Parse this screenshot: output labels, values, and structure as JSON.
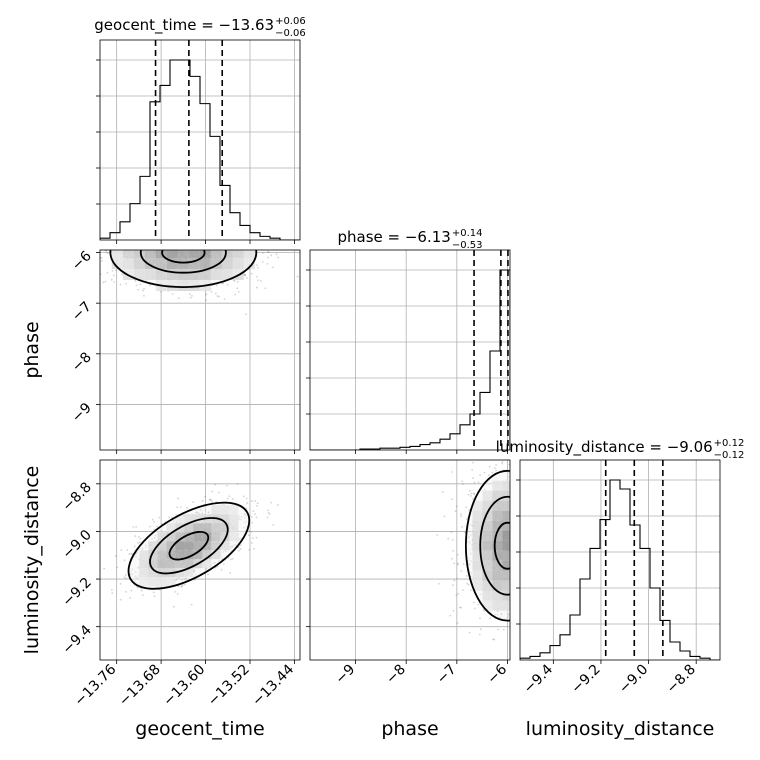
{
  "chart_data": {
    "type": "corner",
    "grid": true,
    "parameters": [
      {
        "name": "geocent_time",
        "median": -13.63,
        "err_plus": 0.06,
        "err_minus": 0.06,
        "range": [
          -13.79,
          -13.43
        ],
        "ticks": [
          -13.76,
          -13.68,
          -13.6,
          -13.52,
          -13.44
        ],
        "tick_labels": [
          "−13.76",
          "−13.68",
          "−13.60",
          "−13.52",
          "−13.44"
        ],
        "quantiles": [
          -13.69,
          -13.63,
          -13.57
        ]
      },
      {
        "name": "phase",
        "median": -6.13,
        "err_plus": 0.14,
        "err_minus": 0.53,
        "range": [
          -9.9,
          -5.95
        ],
        "ticks": [
          -9,
          -8,
          -7,
          -6
        ],
        "tick_labels": [
          "−9",
          "−8",
          "−7",
          "−6"
        ],
        "quantiles": [
          -6.66,
          -6.13,
          -5.99
        ]
      },
      {
        "name": "luminosity_distance",
        "median": -9.06,
        "err_plus": 0.12,
        "err_minus": 0.12,
        "range": [
          -9.54,
          -8.7
        ],
        "ticks": [
          -9.4,
          -9.2,
          -9.0,
          -8.8
        ],
        "tick_labels": [
          "−9.4",
          "−9.2",
          "−9.0",
          "−8.8"
        ],
        "quantiles": [
          -9.18,
          -9.06,
          -8.94
        ]
      }
    ],
    "titles": [
      {
        "prefix": "geocent_time = −13.63",
        "sup": "+0.06",
        "sub": "−0.06"
      },
      {
        "prefix": "phase = −6.13",
        "sup": "+0.14",
        "sub": "−0.53"
      },
      {
        "prefix": "luminosity_distance = −9.06",
        "sup": "+0.12",
        "sub": "−0.12"
      }
    ],
    "histograms": [
      {
        "param": "geocent_time",
        "bin_edges_range": [
          -13.79,
          -13.43
        ],
        "bins": 20,
        "counts": [
          1,
          4,
          10,
          20,
          35,
          76,
          85,
          99,
          99,
          90,
          75,
          57,
          30,
          15,
          8,
          4,
          2,
          1,
          0,
          0
        ]
      },
      {
        "param": "phase",
        "bin_edges_range": [
          -9.9,
          -5.95
        ],
        "bins": 20,
        "counts": [
          0,
          0,
          0,
          0,
          0,
          0.5,
          0.5,
          1,
          1,
          1.5,
          2,
          3,
          4,
          6,
          9,
          14,
          20,
          32,
          55,
          100
        ]
      },
      {
        "param": "luminosity_distance",
        "bin_edges_range": [
          -9.54,
          -8.7
        ],
        "bins": 20,
        "counts": [
          1,
          2,
          4,
          8,
          14,
          25,
          45,
          62,
          78,
          100,
          95,
          75,
          62,
          40,
          22,
          10,
          5,
          2,
          1,
          0
        ]
      }
    ],
    "blobs_2d": [
      {
        "x_param": "geocent_time",
        "y_param": "phase",
        "centers": [
          [
            -13.64,
            -6.0
          ]
        ],
        "level_multipliers": [
          1.2,
          0.7,
          0.35
        ]
      },
      {
        "x_param": "geocent_time",
        "y_param": "luminosity_distance",
        "centers": [
          [
            -13.63,
            -9.06
          ]
        ],
        "correlation": 0.75,
        "level_multipliers": [
          1.4,
          0.9,
          0.45
        ]
      },
      {
        "x_param": "phase",
        "y_param": "luminosity_distance",
        "centers": [
          [
            -6.0,
            -9.06
          ]
        ],
        "level_multipliers": [
          1.3,
          0.85,
          0.4
        ]
      }
    ]
  }
}
